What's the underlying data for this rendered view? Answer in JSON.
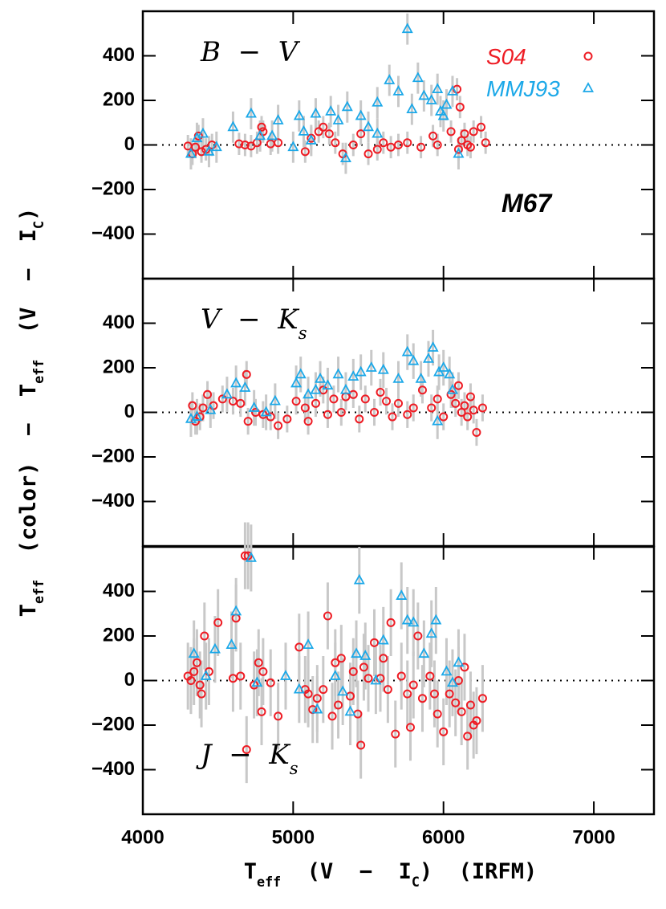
{
  "chart_data": [
    {
      "type": "scatter",
      "xlim": [
        4000,
        7400
      ],
      "ylim": [
        -600,
        600
      ],
      "xticks": [
        4000,
        5000,
        6000,
        7000
      ],
      "yticks": [
        {
          "value": -400,
          "label": "−400"
        },
        {
          "value": -200,
          "label": "−200"
        },
        0,
        200,
        400
      ],
      "label": [
        {
          "text": "B  −  V"
        }
      ],
      "annotation": "M67",
      "legend": "top-right",
      "series": [
        {
          "name": "S04",
          "marker": "circle",
          "color": "#ee1c24",
          "error": 50,
          "x": [
            4300,
            4330,
            4350,
            4370,
            4390,
            4420,
            4460,
            4640,
            4680,
            4720,
            4760,
            4790,
            4800,
            4850,
            4900,
            5080,
            5120,
            5170,
            5200,
            5240,
            5280,
            5330,
            5400,
            5450,
            5500,
            5560,
            5600,
            5650,
            5700,
            5760,
            5850,
            5930,
            5960,
            6050,
            6090,
            6100,
            6110,
            6120,
            6140,
            6160,
            6180,
            6200,
            6250,
            6280
          ],
          "values": [
            -5,
            -40,
            -10,
            40,
            -30,
            -20,
            0,
            5,
            0,
            -5,
            10,
            80,
            60,
            5,
            10,
            -30,
            30,
            60,
            80,
            50,
            10,
            -40,
            0,
            50,
            -40,
            -20,
            10,
            -10,
            0,
            10,
            -10,
            40,
            0,
            60,
            250,
            -20,
            170,
            20,
            50,
            0,
            -10,
            60,
            80,
            10
          ]
        },
        {
          "name": "MMJ93",
          "marker": "triangle",
          "color": "#1ba8e8",
          "error": 70,
          "x": [
            4320,
            4360,
            4400,
            4440,
            4490,
            4600,
            4720,
            4780,
            4860,
            4900,
            5000,
            5040,
            5070,
            5120,
            5150,
            5250,
            5300,
            5360,
            5450,
            5500,
            5560,
            5640,
            5700,
            5760,
            5790,
            5830,
            5870,
            5920,
            5960,
            5980,
            6000,
            6020,
            6060,
            6100,
            5350,
            5560
          ],
          "values": [
            -40,
            30,
            50,
            -30,
            -10,
            80,
            140,
            40,
            40,
            110,
            -10,
            130,
            60,
            20,
            140,
            150,
            110,
            170,
            130,
            80,
            190,
            290,
            240,
            520,
            160,
            300,
            220,
            200,
            250,
            150,
            130,
            180,
            240,
            -40,
            -60,
            50
          ]
        }
      ]
    },
    {
      "type": "scatter",
      "xlim": [
        4000,
        7400
      ],
      "ylim": [
        -600,
        600
      ],
      "xticks": [
        4000,
        5000,
        6000,
        7000
      ],
      "yticks": [
        {
          "value": -400,
          "label": "−400"
        },
        {
          "value": -200,
          "label": "−200"
        },
        0,
        200,
        400
      ],
      "label": [
        {
          "text": "V  −  K"
        },
        {
          "text": "s",
          "sub": true
        }
      ],
      "ylabel": [
        {
          "text": "T"
        },
        {
          "text": "eff",
          "sub": true
        },
        {
          "text": "  (color)  −  T"
        },
        {
          "text": "eff",
          "sub": true
        },
        {
          "text": "  (V  −  I"
        },
        {
          "text": "C",
          "sub": true
        },
        {
          "text": ")"
        }
      ],
      "series": [
        {
          "name": "S04",
          "marker": "circle",
          "color": "#ee1c24",
          "error": 60,
          "x": [
            4330,
            4350,
            4380,
            4400,
            4430,
            4470,
            4530,
            4600,
            4650,
            4690,
            4700,
            4750,
            4800,
            4850,
            4900,
            4960,
            5020,
            5080,
            5100,
            5150,
            5200,
            5230,
            5270,
            5320,
            5350,
            5400,
            5440,
            5480,
            5540,
            5580,
            5620,
            5660,
            5700,
            5760,
            5800,
            5860,
            5920,
            5960,
            6000,
            6050,
            6080,
            6100,
            6120,
            6140,
            6160,
            6180,
            6200,
            6220,
            6260
          ],
          "values": [
            30,
            -40,
            -20,
            20,
            80,
            30,
            60,
            50,
            40,
            170,
            -40,
            0,
            -10,
            -20,
            -60,
            -30,
            50,
            20,
            -40,
            40,
            100,
            -10,
            60,
            0,
            70,
            80,
            -30,
            60,
            0,
            90,
            50,
            -20,
            40,
            -10,
            20,
            100,
            20,
            60,
            -20,
            80,
            40,
            120,
            0,
            30,
            -20,
            70,
            10,
            -90,
            20
          ]
        },
        {
          "name": "MMJ93",
          "marker": "triangle",
          "color": "#1ba8e8",
          "error": 80,
          "x": [
            4320,
            4360,
            4450,
            4560,
            4620,
            4680,
            4740,
            4820,
            4880,
            5020,
            5050,
            5100,
            5150,
            5180,
            5230,
            5300,
            5350,
            5400,
            5450,
            5520,
            5600,
            5700,
            5760,
            5800,
            5850,
            5900,
            5930,
            5970,
            6000,
            6040,
            6060,
            5960
          ],
          "values": [
            -30,
            -20,
            10,
            80,
            130,
            110,
            20,
            0,
            50,
            130,
            170,
            80,
            100,
            150,
            120,
            170,
            100,
            160,
            180,
            200,
            190,
            150,
            270,
            230,
            150,
            240,
            290,
            180,
            200,
            170,
            100,
            -40
          ]
        }
      ]
    },
    {
      "type": "scatter",
      "xlim": [
        4000,
        7400
      ],
      "ylim": [
        -600,
        600
      ],
      "xticks": [
        4000,
        5000,
        6000,
        7000
      ],
      "yticks": [
        {
          "value": -400,
          "label": "−400"
        },
        {
          "value": -200,
          "label": "−200"
        },
        0,
        200,
        400
      ],
      "label": [
        {
          "text": "J  −  K"
        },
        {
          "text": "s",
          "sub": true
        }
      ],
      "xlabel": [
        {
          "text": "T"
        },
        {
          "text": "eff",
          "sub": true
        },
        {
          "text": "  (V  −  I"
        },
        {
          "text": "C",
          "sub": true
        },
        {
          "text": ")  (IRFM)"
        }
      ],
      "series": [
        {
          "name": "S04",
          "marker": "circle",
          "color": "#ee1c24",
          "error": 150,
          "x": [
            4300,
            4320,
            4340,
            4360,
            4380,
            4390,
            4410,
            4440,
            4500,
            4600,
            4620,
            4650,
            4680,
            4700,
            4690,
            4740,
            4770,
            4790,
            4800,
            4850,
            4900,
            5040,
            5080,
            5100,
            5130,
            5160,
            5200,
            5230,
            5260,
            5280,
            5300,
            5320,
            5380,
            5400,
            5430,
            5450,
            5470,
            5500,
            5540,
            5580,
            5600,
            5630,
            5650,
            5680,
            5720,
            5760,
            5780,
            5800,
            5830,
            5860,
            5910,
            5940,
            5960,
            6000,
            6040,
            6080,
            6100,
            6120,
            6140,
            6160,
            6180,
            6200,
            6220,
            6260
          ],
          "values": [
            20,
            0,
            40,
            80,
            -20,
            -60,
            200,
            40,
            260,
            10,
            280,
            20,
            560,
            560,
            -310,
            -20,
            80,
            -140,
            40,
            -10,
            -160,
            150,
            -40,
            -60,
            -130,
            -80,
            -40,
            290,
            -160,
            80,
            -110,
            100,
            -70,
            40,
            -150,
            -290,
            60,
            10,
            170,
            10,
            100,
            -40,
            260,
            -240,
            20,
            -60,
            -210,
            -20,
            200,
            -80,
            20,
            -60,
            -150,
            -230,
            -60,
            -100,
            0,
            -140,
            60,
            -250,
            -110,
            -200,
            -180,
            -80
          ]
        },
        {
          "name": "MMJ93",
          "marker": "triangle",
          "color": "#1ba8e8",
          "error": 150,
          "x": [
            4340,
            4420,
            4480,
            4590,
            4620,
            4720,
            4760,
            4950,
            5040,
            5100,
            5160,
            5280,
            5330,
            5380,
            5420,
            5440,
            5480,
            5550,
            5600,
            5720,
            5760,
            5800,
            5870,
            5920,
            5950,
            6020,
            6060,
            6100
          ],
          "values": [
            120,
            20,
            140,
            160,
            310,
            550,
            -10,
            20,
            -40,
            160,
            -130,
            20,
            -50,
            -140,
            120,
            450,
            110,
            0,
            180,
            380,
            270,
            260,
            120,
            210,
            270,
            40,
            -10,
            80
          ]
        }
      ]
    }
  ]
}
